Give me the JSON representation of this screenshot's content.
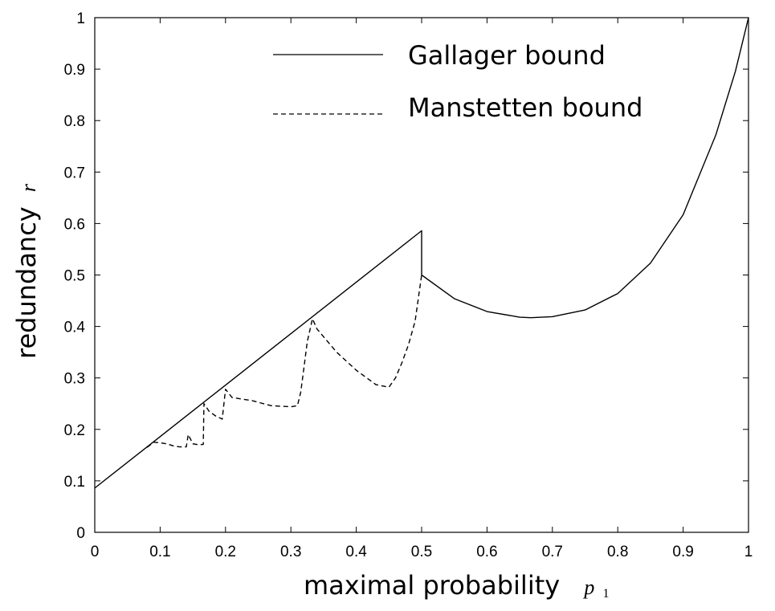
{
  "chart_data": {
    "type": "line",
    "xlabel": "maximal probability",
    "xlabel_symbol": "p",
    "xlabel_subscript": "1",
    "ylabel": "redundancy",
    "ylabel_symbol": "r",
    "xlim": [
      0,
      1
    ],
    "ylim": [
      0,
      1
    ],
    "xticks": [
      "0",
      "0.1",
      "0.2",
      "0.3",
      "0.4",
      "0.5",
      "0.6",
      "0.7",
      "0.8",
      "0.9",
      "1"
    ],
    "yticks": [
      "0",
      "0.1",
      "0.2",
      "0.3",
      "0.4",
      "0.5",
      "0.6",
      "0.7",
      "0.8",
      "0.9",
      "1"
    ],
    "grid": false,
    "legend_position": "top-center",
    "series": [
      {
        "name": "Gallager bound",
        "style": "solid",
        "color": "#000000",
        "x": [
          0,
          0.1,
          0.2,
          0.3,
          0.4,
          0.5,
          0.5,
          0.55,
          0.6,
          0.65,
          0.667,
          0.7,
          0.75,
          0.8,
          0.85,
          0.9,
          0.95,
          0.98,
          1.0
        ],
        "y": [
          0.086,
          0.186,
          0.286,
          0.386,
          0.486,
          0.586,
          0.5,
          0.454,
          0.429,
          0.418,
          0.417,
          0.419,
          0.432,
          0.464,
          0.523,
          0.617,
          0.772,
          0.896,
          1.0
        ]
      },
      {
        "name": "Manstetten bound",
        "style": "dashed",
        "color": "#000000",
        "x": [
          0.08,
          0.09,
          0.1,
          0.11,
          0.12,
          0.13,
          0.14,
          0.143,
          0.15,
          0.16,
          0.166,
          0.167,
          0.175,
          0.185,
          0.195,
          0.2,
          0.21,
          0.24,
          0.27,
          0.3,
          0.31,
          0.315,
          0.32,
          0.325,
          0.333,
          0.34,
          0.37,
          0.4,
          0.43,
          0.45,
          0.46,
          0.47,
          0.48,
          0.49,
          0.5
        ],
        "y": [
          0.165,
          0.175,
          0.174,
          0.172,
          0.168,
          0.166,
          0.166,
          0.19,
          0.172,
          0.17,
          0.171,
          0.25,
          0.235,
          0.226,
          0.22,
          0.278,
          0.262,
          0.256,
          0.246,
          0.244,
          0.246,
          0.272,
          0.32,
          0.37,
          0.415,
          0.395,
          0.35,
          0.315,
          0.287,
          0.282,
          0.3,
          0.33,
          0.365,
          0.41,
          0.5
        ]
      }
    ]
  }
}
